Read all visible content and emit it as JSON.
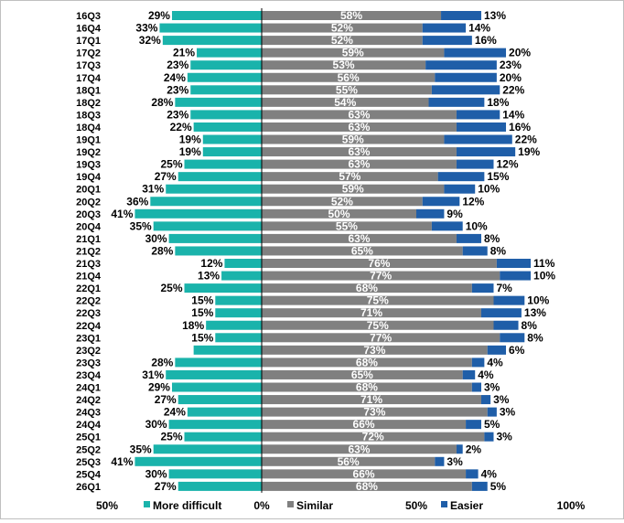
{
  "chart_data": {
    "type": "bar",
    "orientation": "horizontal",
    "stacking": "diverging",
    "categories": [
      "16Q3",
      "16Q4",
      "17Q1",
      "17Q2",
      "17Q3",
      "17Q4",
      "18Q1",
      "18Q2",
      "18Q3",
      "18Q4",
      "19Q1",
      "19Q2",
      "19Q3",
      "19Q4",
      "20Q1",
      "20Q2",
      "20Q3",
      "20Q4",
      "21Q1",
      "21Q2",
      "21Q3",
      "21Q4",
      "22Q1",
      "22Q2",
      "22Q3",
      "22Q4",
      "23Q1",
      "23Q2",
      "23Q3",
      "23Q4",
      "24Q1",
      "24Q2",
      "24Q3",
      "24Q4",
      "25Q1",
      "25Q2",
      "25Q3",
      "25Q4",
      "26Q1"
    ],
    "series": [
      {
        "name": "More difficult",
        "color": "#1ab3ab",
        "values": [
          29,
          33,
          32,
          21,
          23,
          24,
          23,
          28,
          23,
          22,
          19,
          19,
          25,
          27,
          31,
          36,
          41,
          35,
          30,
          28,
          12,
          13,
          25,
          15,
          15,
          18,
          15,
          22,
          28,
          31,
          29,
          27,
          24,
          30,
          25,
          35,
          41,
          30,
          27
        ],
        "labels": [
          "29%",
          "33%",
          "32%",
          "21%",
          "23%",
          "24%",
          "23%",
          "28%",
          "23%",
          "22%",
          "19%",
          "19%",
          "25%",
          "27%",
          "31%",
          "36%",
          "41%",
          "35%",
          "30%",
          "28%",
          "12%",
          "13%",
          "25%",
          "15%",
          "15%",
          "18%",
          "15%",
          "",
          "28%",
          "31%",
          "29%",
          "27%",
          "24%",
          "30%",
          "25%",
          "35%",
          "41%",
          "30%",
          "27%"
        ]
      },
      {
        "name": "Similar",
        "color": "#808080",
        "values": [
          58,
          52,
          52,
          59,
          53,
          56,
          55,
          54,
          63,
          63,
          59,
          63,
          63,
          57,
          59,
          52,
          50,
          55,
          63,
          65,
          76,
          77,
          68,
          75,
          71,
          75,
          77,
          73,
          68,
          65,
          68,
          71,
          73,
          66,
          72,
          63,
          56,
          66,
          68
        ],
        "labels": [
          "58%",
          "52%",
          "52%",
          "59%",
          "53%",
          "56%",
          "55%",
          "54%",
          "63%",
          "63%",
          "59%",
          "63%",
          "63%",
          "57%",
          "59%",
          "52%",
          "50%",
          "55%",
          "63%",
          "65%",
          "76%",
          "77%",
          "68%",
          "75%",
          "71%",
          "75%",
          "77%",
          "73%",
          "68%",
          "65%",
          "68%",
          "71%",
          "73%",
          "66%",
          "72%",
          "63%",
          "56%",
          "66%",
          "68%"
        ]
      },
      {
        "name": "Easier",
        "color": "#1f5ea8",
        "values": [
          13,
          14,
          16,
          20,
          23,
          20,
          22,
          18,
          14,
          16,
          22,
          19,
          12,
          15,
          10,
          12,
          9,
          10,
          8,
          8,
          11,
          10,
          7,
          10,
          13,
          8,
          8,
          6,
          4,
          4,
          3,
          3,
          3,
          5,
          3,
          2,
          3,
          4,
          5
        ],
        "labels": [
          "13%",
          "14%",
          "16%",
          "20%",
          "23%",
          "20%",
          "22%",
          "18%",
          "14%",
          "16%",
          "22%",
          "19%",
          "12%",
          "15%",
          "10%",
          "12%",
          "9%",
          "10%",
          "8%",
          "8%",
          "11%",
          "10%",
          "7%",
          "10%",
          "13%",
          "8%",
          "8%",
          "6%",
          "4%",
          "4%",
          "3%",
          "3%",
          "3%",
          "5%",
          "3%",
          "2%",
          "3%",
          "4%",
          "5%"
        ]
      }
    ],
    "x_ticks": [
      "50%",
      "0%",
      "50%",
      "100%"
    ],
    "xlim": [
      -50,
      100
    ],
    "legend_position": "bottom",
    "gridlines": false
  }
}
